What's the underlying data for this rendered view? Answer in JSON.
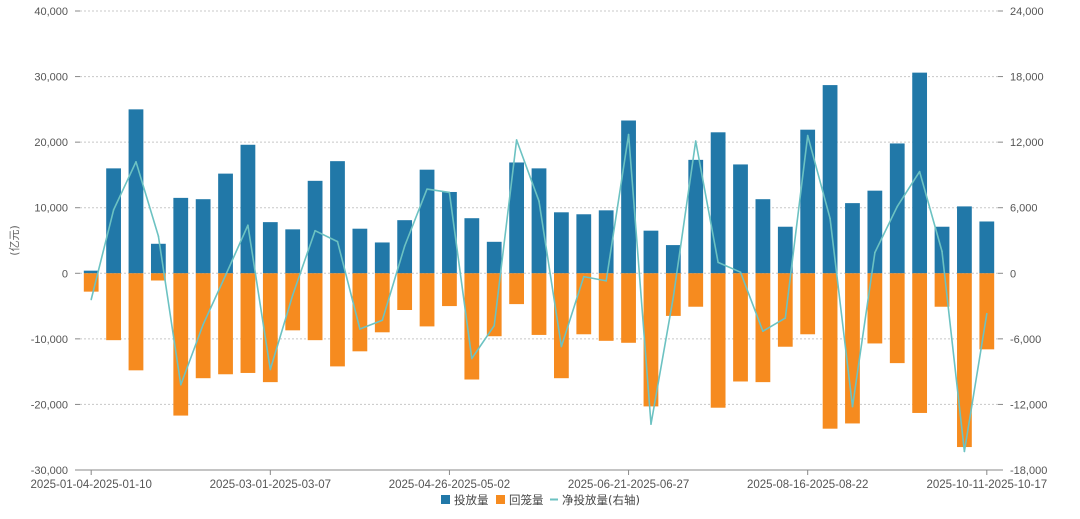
{
  "chart_data": {
    "type": "bar",
    "ylabel": "(亿元)",
    "ylim": [
      -30000,
      40000
    ],
    "y_ticks": [
      "40,000",
      "30,000",
      "20,000",
      "10,000",
      "0",
      "-10,000",
      "-20,000",
      "-30,000"
    ],
    "y2lim": [
      -18000,
      24000
    ],
    "y2_ticks": [
      "24,000",
      "18,000",
      "12,000",
      "6,000",
      "0",
      "-6,000",
      "-12,000",
      "-18,000"
    ],
    "x_tick_labels": [
      {
        "index": 0,
        "label": "2025-01-04-2025-01-10"
      },
      {
        "index": 8,
        "label": "2025-03-01-2025-03-07"
      },
      {
        "index": 16,
        "label": "2025-04-26-2025-05-02"
      },
      {
        "index": 24,
        "label": "2025-06-21-2025-06-27"
      },
      {
        "index": 32,
        "label": "2025-08-16-2025-08-22"
      },
      {
        "index": 40,
        "label": "2025-10-11-2025-10-17"
      }
    ],
    "legend": {
      "placement": "bottom-center",
      "items": [
        "投放量",
        "回笼量",
        "净投放量(右轴)"
      ]
    },
    "colors": {
      "injection": "#2178a8",
      "withdrawal": "#f68b1f",
      "net": "#6cc2c2",
      "grid": "#c8c8c8",
      "axis": "#888888"
    },
    "series": [
      {
        "name": "投放量",
        "axis": "left",
        "kind": "bar",
        "values": [
          400,
          16000,
          25000,
          4500,
          11500,
          11300,
          15200,
          19600,
          7800,
          6700,
          14100,
          17100,
          6800,
          4700,
          8100,
          15800,
          12400,
          8400,
          4800,
          16900,
          16000,
          9300,
          9000,
          9600,
          23300,
          6500,
          4300,
          17300,
          21500,
          16600,
          11300,
          7100,
          21900,
          28700,
          10700,
          12600,
          19800,
          30600,
          7100,
          10200,
          7900
        ]
      },
      {
        "name": "回笼量",
        "axis": "left",
        "kind": "bar",
        "values": [
          -2800,
          -10200,
          -14800,
          -1100,
          -21700,
          -16000,
          -15400,
          -15200,
          -16600,
          -8700,
          -10200,
          -14200,
          -11900,
          -9000,
          -5600,
          -8100,
          -5000,
          -16200,
          -9600,
          -4700,
          -9400,
          -16000,
          -9300,
          -10300,
          -10600,
          -20300,
          -6500,
          -5100,
          -20500,
          -16500,
          -16600,
          -11200,
          -9300,
          -23700,
          -22900,
          -10700,
          -13700,
          -21300,
          -5100,
          -26500,
          -11600
        ]
      },
      {
        "name": "净投放量(右轴)",
        "axis": "right",
        "kind": "line",
        "values": [
          -2400,
          5800,
          10200,
          3400,
          -10200,
          -4700,
          -200,
          4400,
          -8800,
          -2000,
          3900,
          2900,
          -5100,
          -4300,
          2500,
          7700,
          7400,
          -7800,
          -4800,
          12200,
          6600,
          -6700,
          -300,
          -700,
          12700,
          -13800,
          -2200,
          12100,
          1000,
          100,
          -5300,
          -4100,
          12600,
          5000,
          -12200,
          1900,
          6100,
          9300,
          2000,
          -16300,
          -3700
        ]
      }
    ]
  }
}
